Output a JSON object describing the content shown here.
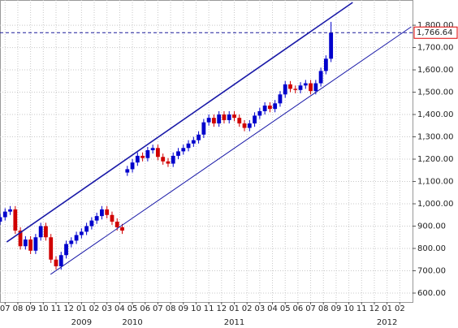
{
  "chart_data": {
    "type": "candlestick",
    "x": [
      -0.4,
      0,
      0.4,
      0.8,
      1.2,
      1.6,
      2,
      2.4,
      2.8,
      3.2,
      3.6,
      4,
      4.4,
      4.8,
      5.2,
      5.6,
      6,
      6.4,
      6.8,
      7.2,
      7.6,
      8,
      8.4,
      8.8,
      9.2,
      9.6,
      10,
      10.4,
      10.8,
      11.2,
      11.6,
      12,
      12.4,
      12.8,
      13.2,
      13.6,
      14,
      14.4,
      14.8,
      15.2,
      15.6,
      16,
      16.4,
      16.8,
      17.2,
      17.6,
      18,
      18.4,
      18.8,
      19.2,
      19.6,
      20,
      20.4,
      20.8,
      21.2,
      21.6,
      22,
      22.4,
      22.8,
      23.2,
      23.6,
      24,
      24.4,
      24.8,
      25.2,
      25.6
    ],
    "open": [
      920,
      940,
      965,
      975,
      880,
      810,
      840,
      790,
      850,
      900,
      850,
      750,
      720,
      770,
      820,
      835,
      860,
      875,
      900,
      925,
      945,
      975,
      950,
      920,
      895,
      1140,
      1155,
      1185,
      1215,
      1205,
      1240,
      1250,
      1210,
      1190,
      1180,
      1215,
      1235,
      1250,
      1270,
      1285,
      1310,
      1365,
      1385,
      1360,
      1400,
      1375,
      1400,
      1385,
      1360,
      1340,
      1360,
      1395,
      1415,
      1440,
      1425,
      1450,
      1490,
      1535,
      1515,
      1510,
      1530,
      1540,
      1505,
      1540,
      1595,
      1650
    ],
    "high": [
      955,
      980,
      990,
      990,
      895,
      855,
      855,
      865,
      915,
      915,
      865,
      765,
      785,
      835,
      850,
      875,
      890,
      915,
      940,
      960,
      990,
      990,
      965,
      935,
      910,
      1170,
      1200,
      1230,
      1230,
      1255,
      1265,
      1265,
      1225,
      1205,
      1230,
      1250,
      1265,
      1285,
      1300,
      1325,
      1380,
      1400,
      1400,
      1415,
      1415,
      1415,
      1415,
      1400,
      1375,
      1375,
      1410,
      1430,
      1455,
      1455,
      1465,
      1505,
      1550,
      1550,
      1530,
      1545,
      1555,
      1555,
      1555,
      1610,
      1665,
      1815
    ],
    "low": [
      905,
      925,
      950,
      865,
      795,
      795,
      775,
      775,
      835,
      835,
      735,
      705,
      705,
      755,
      805,
      820,
      845,
      860,
      885,
      910,
      930,
      935,
      905,
      880,
      865,
      1125,
      1140,
      1170,
      1190,
      1190,
      1225,
      1195,
      1175,
      1165,
      1165,
      1200,
      1220,
      1235,
      1255,
      1270,
      1295,
      1350,
      1345,
      1345,
      1360,
      1360,
      1370,
      1345,
      1325,
      1325,
      1345,
      1380,
      1400,
      1410,
      1410,
      1435,
      1475,
      1500,
      1495,
      1495,
      1515,
      1490,
      1490,
      1525,
      1580,
      1635
    ],
    "close": [
      940,
      965,
      975,
      880,
      810,
      840,
      790,
      850,
      900,
      850,
      750,
      720,
      770,
      820,
      835,
      860,
      875,
      900,
      925,
      945,
      975,
      950,
      920,
      895,
      880,
      1155,
      1185,
      1215,
      1205,
      1240,
      1250,
      1210,
      1190,
      1180,
      1215,
      1235,
      1250,
      1270,
      1285,
      1310,
      1365,
      1385,
      1360,
      1400,
      1375,
      1400,
      1385,
      1360,
      1340,
      1360,
      1395,
      1415,
      1440,
      1425,
      1450,
      1490,
      1535,
      1515,
      1510,
      1530,
      1540,
      1505,
      1540,
      1595,
      1650,
      1766.64
    ],
    "up_color": "#0000cc",
    "down_color": "#d00000",
    "trendlines": [
      {
        "x": [
          0.13,
          27.3
        ],
        "y": [
          829,
          1902
        ],
        "color": "#1a1aa8",
        "width": 1.6
      },
      {
        "x": [
          3.57,
          31.9
        ],
        "y": [
          684,
          1793
        ],
        "color": "#1a1aa8",
        "width": 1
      }
    ],
    "last_price": {
      "value": 1766.64,
      "label": "1,766.64",
      "color": "#e00000",
      "line_color": "#1a1a9a"
    },
    "xlim": [
      -0.4,
      32
    ],
    "ylim": [
      560,
      1913
    ],
    "xticks": [
      {
        "value": 0,
        "label": "07"
      },
      {
        "value": 1,
        "label": "08"
      },
      {
        "value": 2,
        "label": "09"
      },
      {
        "value": 3,
        "label": "10"
      },
      {
        "value": 4,
        "label": "11"
      },
      {
        "value": 5,
        "label": "12"
      },
      {
        "value": 6,
        "label": "01"
      },
      {
        "value": 7,
        "label": "02"
      },
      {
        "value": 8,
        "label": "03"
      },
      {
        "value": 9,
        "label": "04"
      },
      {
        "value": 10,
        "label": "05"
      },
      {
        "value": 11,
        "label": "06"
      },
      {
        "value": 12,
        "label": "07"
      },
      {
        "value": 13,
        "label": "08"
      },
      {
        "value": 14,
        "label": "09"
      },
      {
        "value": 15,
        "label": "10"
      },
      {
        "value": 16,
        "label": "11"
      },
      {
        "value": 17,
        "label": "12"
      },
      {
        "value": 18,
        "label": "01"
      },
      {
        "value": 19,
        "label": "02"
      },
      {
        "value": 20,
        "label": "03"
      },
      {
        "value": 21,
        "label": "04"
      },
      {
        "value": 22,
        "label": "05"
      },
      {
        "value": 23,
        "label": "06"
      },
      {
        "value": 24,
        "label": "07"
      },
      {
        "value": 25,
        "label": "08"
      },
      {
        "value": 26,
        "label": "09"
      },
      {
        "value": 27,
        "label": "10"
      },
      {
        "value": 28,
        "label": "11"
      },
      {
        "value": 29,
        "label": "12"
      },
      {
        "value": 30,
        "label": "01"
      },
      {
        "value": 31,
        "label": "02"
      }
    ],
    "year_labels": [
      {
        "value": 6,
        "label": "2009"
      },
      {
        "value": 10,
        "label": "2010"
      },
      {
        "value": 18,
        "label": "2011"
      },
      {
        "value": 30,
        "label": "2012"
      }
    ],
    "yticks": [
      {
        "value": 600,
        "label": "600.00"
      },
      {
        "value": 700,
        "label": "700.00"
      },
      {
        "value": 800,
        "label": "800.00"
      },
      {
        "value": 900,
        "label": "900.00"
      },
      {
        "value": 1000,
        "label": "1,000.00"
      },
      {
        "value": 1100,
        "label": "1,100.00"
      },
      {
        "value": 1200,
        "label": "1,200.00"
      },
      {
        "value": 1300,
        "label": "1,300.00"
      },
      {
        "value": 1400,
        "label": "1,400.00"
      },
      {
        "value": 1500,
        "label": "1,500.00"
      },
      {
        "value": 1600,
        "label": "1,600.00"
      },
      {
        "value": 1700,
        "label": "1,700.00"
      },
      {
        "value": 1800,
        "label": "1,800.00"
      }
    ],
    "grid": true
  }
}
